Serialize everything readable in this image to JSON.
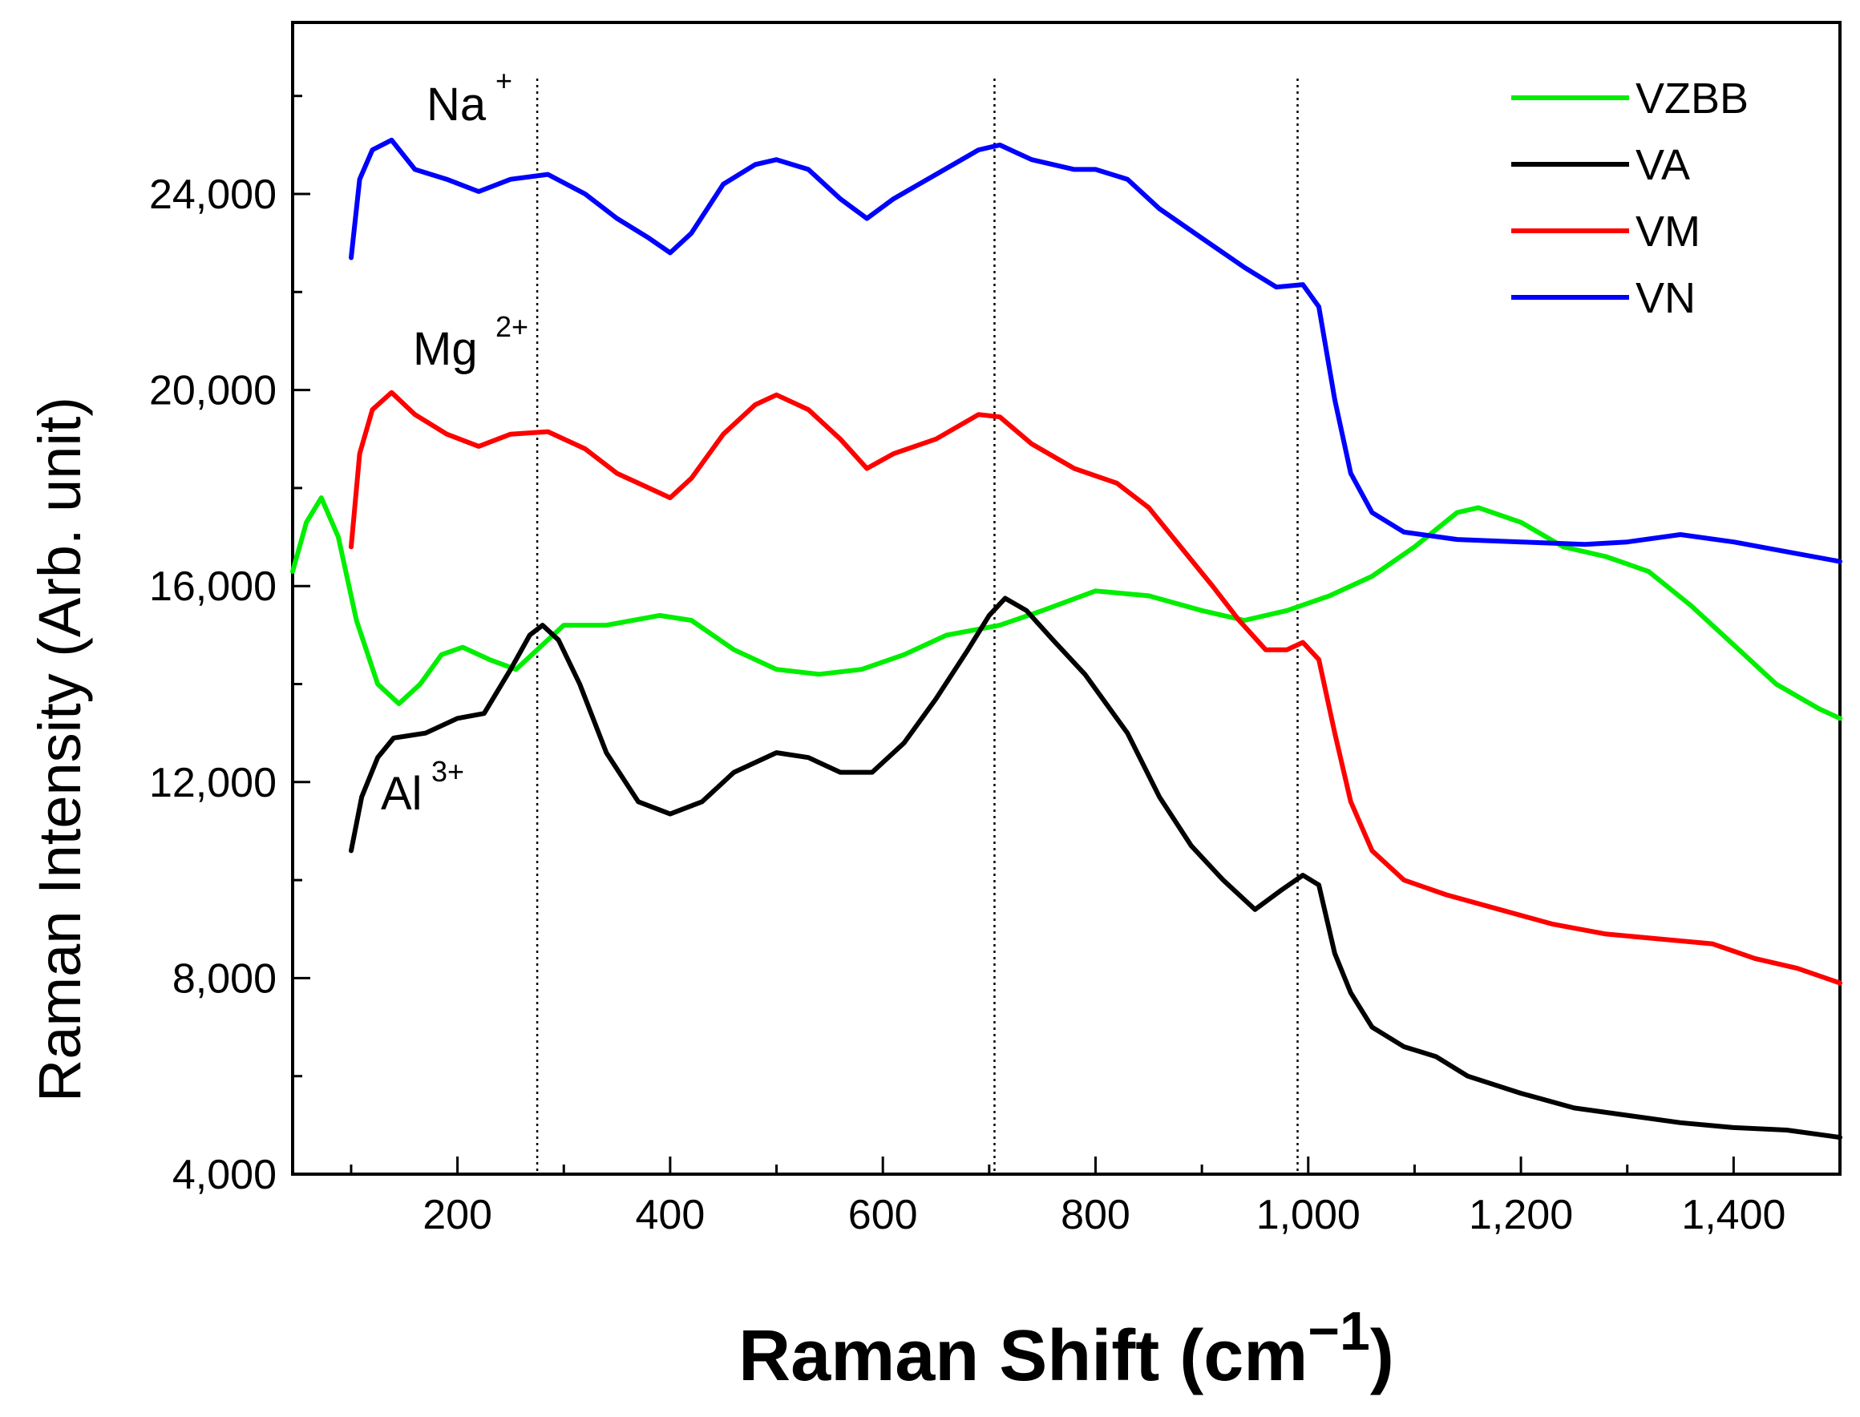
{
  "chart_data": {
    "type": "line",
    "title": "",
    "xlabel": "Raman Shift (cm",
    "xlabel_superscript": "−1",
    "xlabel_close": ")",
    "ylabel": "Raman Intensity (Arb. unit)",
    "xlim": [
      45,
      1500
    ],
    "ylim": [
      4000,
      27500
    ],
    "x_ticks": [
      200,
      400,
      600,
      800,
      1000,
      1200,
      1400
    ],
    "x_tick_labels": [
      "200",
      "400",
      "600",
      "800",
      "1,000",
      "1,200",
      "1,400"
    ],
    "y_ticks": [
      4000,
      8000,
      12000,
      16000,
      20000,
      24000
    ],
    "y_tick_labels": [
      "4,000",
      "8,000",
      "12,000",
      "16,000",
      "20,000",
      "24,000"
    ],
    "reference_lines_x": [
      275,
      705,
      990
    ],
    "legend_position": "top-right",
    "series": [
      {
        "name": "VZBB",
        "color": "#00ee00",
        "points": [
          [
            45,
            16300
          ],
          [
            58,
            17300
          ],
          [
            72,
            17800
          ],
          [
            88,
            17000
          ],
          [
            105,
            15300
          ],
          [
            125,
            14000
          ],
          [
            145,
            13600
          ],
          [
            165,
            14000
          ],
          [
            185,
            14600
          ],
          [
            205,
            14750
          ],
          [
            230,
            14500
          ],
          [
            255,
            14300
          ],
          [
            275,
            14700
          ],
          [
            300,
            15200
          ],
          [
            340,
            15200
          ],
          [
            390,
            15400
          ],
          [
            420,
            15300
          ],
          [
            460,
            14700
          ],
          [
            500,
            14300
          ],
          [
            540,
            14200
          ],
          [
            580,
            14300
          ],
          [
            620,
            14600
          ],
          [
            660,
            15000
          ],
          [
            710,
            15200
          ],
          [
            750,
            15500
          ],
          [
            800,
            15900
          ],
          [
            850,
            15800
          ],
          [
            900,
            15500
          ],
          [
            940,
            15300
          ],
          [
            980,
            15500
          ],
          [
            1020,
            15800
          ],
          [
            1060,
            16200
          ],
          [
            1100,
            16800
          ],
          [
            1140,
            17500
          ],
          [
            1160,
            17600
          ],
          [
            1200,
            17300
          ],
          [
            1240,
            16800
          ],
          [
            1280,
            16600
          ],
          [
            1320,
            16300
          ],
          [
            1360,
            15600
          ],
          [
            1400,
            14800
          ],
          [
            1440,
            14000
          ],
          [
            1480,
            13500
          ],
          [
            1500,
            13300
          ]
        ]
      },
      {
        "name": "VA",
        "color": "#000000",
        "points": [
          [
            100,
            10600
          ],
          [
            110,
            11700
          ],
          [
            125,
            12500
          ],
          [
            140,
            12900
          ],
          [
            170,
            13000
          ],
          [
            200,
            13300
          ],
          [
            225,
            13400
          ],
          [
            250,
            14300
          ],
          [
            268,
            15000
          ],
          [
            280,
            15200
          ],
          [
            295,
            14900
          ],
          [
            315,
            14000
          ],
          [
            340,
            12600
          ],
          [
            370,
            11600
          ],
          [
            400,
            11350
          ],
          [
            430,
            11600
          ],
          [
            460,
            12200
          ],
          [
            500,
            12600
          ],
          [
            530,
            12500
          ],
          [
            560,
            12200
          ],
          [
            590,
            12200
          ],
          [
            620,
            12800
          ],
          [
            650,
            13700
          ],
          [
            680,
            14700
          ],
          [
            700,
            15400
          ],
          [
            715,
            15750
          ],
          [
            735,
            15500
          ],
          [
            760,
            14900
          ],
          [
            790,
            14200
          ],
          [
            830,
            13000
          ],
          [
            860,
            11700
          ],
          [
            890,
            10700
          ],
          [
            920,
            10000
          ],
          [
            950,
            9400
          ],
          [
            975,
            9800
          ],
          [
            995,
            10100
          ],
          [
            1010,
            9900
          ],
          [
            1025,
            8500
          ],
          [
            1040,
            7700
          ],
          [
            1060,
            7000
          ],
          [
            1090,
            6600
          ],
          [
            1120,
            6400
          ],
          [
            1150,
            6000
          ],
          [
            1200,
            5650
          ],
          [
            1250,
            5350
          ],
          [
            1300,
            5200
          ],
          [
            1350,
            5050
          ],
          [
            1400,
            4950
          ],
          [
            1450,
            4900
          ],
          [
            1500,
            4750
          ]
        ]
      },
      {
        "name": "VM",
        "color": "#ff0000",
        "points": [
          [
            100,
            16800
          ],
          [
            108,
            18700
          ],
          [
            120,
            19600
          ],
          [
            138,
            19950
          ],
          [
            160,
            19500
          ],
          [
            190,
            19100
          ],
          [
            220,
            18850
          ],
          [
            250,
            19100
          ],
          [
            285,
            19150
          ],
          [
            320,
            18800
          ],
          [
            350,
            18300
          ],
          [
            380,
            18000
          ],
          [
            400,
            17800
          ],
          [
            420,
            18200
          ],
          [
            450,
            19100
          ],
          [
            480,
            19700
          ],
          [
            500,
            19900
          ],
          [
            530,
            19600
          ],
          [
            560,
            19000
          ],
          [
            585,
            18400
          ],
          [
            610,
            18700
          ],
          [
            650,
            19000
          ],
          [
            690,
            19500
          ],
          [
            710,
            19450
          ],
          [
            740,
            18900
          ],
          [
            780,
            18400
          ],
          [
            820,
            18100
          ],
          [
            850,
            17600
          ],
          [
            880,
            16800
          ],
          [
            910,
            16000
          ],
          [
            935,
            15300
          ],
          [
            960,
            14700
          ],
          [
            980,
            14700
          ],
          [
            995,
            14850
          ],
          [
            1010,
            14500
          ],
          [
            1025,
            13000
          ],
          [
            1040,
            11600
          ],
          [
            1060,
            10600
          ],
          [
            1090,
            10000
          ],
          [
            1130,
            9700
          ],
          [
            1180,
            9400
          ],
          [
            1230,
            9100
          ],
          [
            1280,
            8900
          ],
          [
            1330,
            8800
          ],
          [
            1380,
            8700
          ],
          [
            1420,
            8400
          ],
          [
            1460,
            8200
          ],
          [
            1500,
            7900
          ]
        ]
      },
      {
        "name": "VN",
        "color": "#0000ff",
        "points": [
          [
            100,
            22700
          ],
          [
            108,
            24300
          ],
          [
            120,
            24900
          ],
          [
            138,
            25100
          ],
          [
            160,
            24500
          ],
          [
            190,
            24300
          ],
          [
            220,
            24050
          ],
          [
            250,
            24300
          ],
          [
            285,
            24400
          ],
          [
            320,
            24000
          ],
          [
            350,
            23500
          ],
          [
            380,
            23100
          ],
          [
            400,
            22800
          ],
          [
            420,
            23200
          ],
          [
            450,
            24200
          ],
          [
            480,
            24600
          ],
          [
            500,
            24700
          ],
          [
            530,
            24500
          ],
          [
            560,
            23900
          ],
          [
            585,
            23500
          ],
          [
            610,
            23900
          ],
          [
            650,
            24400
          ],
          [
            690,
            24900
          ],
          [
            710,
            25000
          ],
          [
            740,
            24700
          ],
          [
            780,
            24500
          ],
          [
            800,
            24500
          ],
          [
            830,
            24300
          ],
          [
            860,
            23700
          ],
          [
            900,
            23100
          ],
          [
            940,
            22500
          ],
          [
            970,
            22100
          ],
          [
            995,
            22150
          ],
          [
            1010,
            21700
          ],
          [
            1025,
            19800
          ],
          [
            1040,
            18300
          ],
          [
            1060,
            17500
          ],
          [
            1090,
            17100
          ],
          [
            1140,
            16950
          ],
          [
            1200,
            16900
          ],
          [
            1260,
            16850
          ],
          [
            1300,
            16900
          ],
          [
            1350,
            17050
          ],
          [
            1400,
            16900
          ],
          [
            1450,
            16700
          ],
          [
            1500,
            16500
          ]
        ]
      }
    ],
    "annotations": [
      {
        "base": "Na",
        "sup": "+",
        "color": "#0000ff"
      },
      {
        "base": "Mg",
        "sup": "2+",
        "color": "#ff0000"
      },
      {
        "base": "Al",
        "sup": "3+",
        "color": "#000000"
      }
    ]
  }
}
